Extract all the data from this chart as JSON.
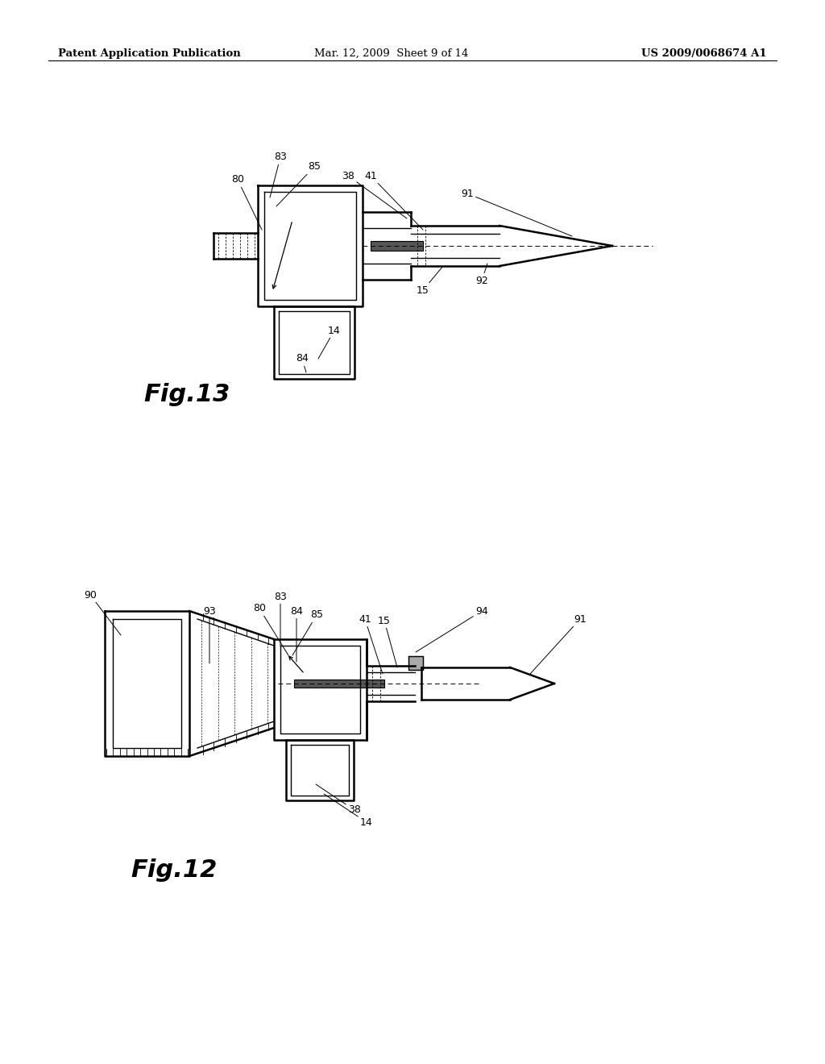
{
  "page_header_left": "Patent Application Publication",
  "page_header_mid": "Mar. 12, 2009  Sheet 9 of 14",
  "page_header_right": "US 2009/0068674 A1",
  "fig13_label": "Fig.13",
  "fig12_label": "Fig.12",
  "background": "#ffffff",
  "line_color": "#000000",
  "header_fontsize": 9.5,
  "fig_label_fontsize": 22,
  "label_fontsize": 9
}
